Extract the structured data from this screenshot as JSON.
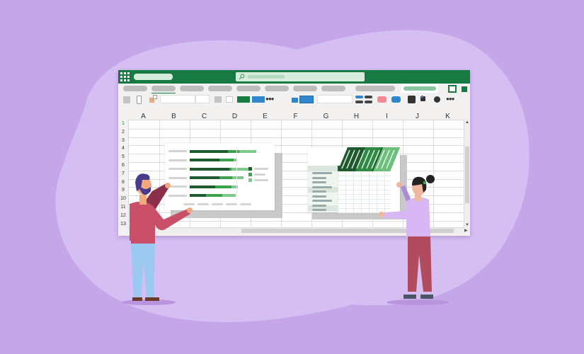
{
  "spreadsheet": {
    "columns": [
      "A",
      "B",
      "C",
      "D",
      "E",
      "F",
      "G",
      "H",
      "I",
      "J",
      "K"
    ],
    "rows": [
      "1",
      "2",
      "3",
      "4",
      "5",
      "6",
      "7",
      "8",
      "9",
      "10",
      "11",
      "12",
      "13"
    ],
    "active_row": "1"
  },
  "icons": {
    "app_launcher": "waffle-grid-icon",
    "search": "search-icon",
    "more": "more-dots-icon",
    "scroll_up": "scroll-up-arrow-icon",
    "scroll_down": "scroll-down-arrow-icon",
    "scroll_right": "scroll-right-arrow-icon"
  },
  "colors": {
    "brand_green": "#177a42",
    "dark_green": "#1e5a2e",
    "mid_green": "#3aa14c",
    "light_green": "#7cc98a",
    "background": "#c4a6e9",
    "blob": "#d4bef2",
    "accent_blue": "#2f86cf",
    "accent_pink": "#f28a96"
  }
}
